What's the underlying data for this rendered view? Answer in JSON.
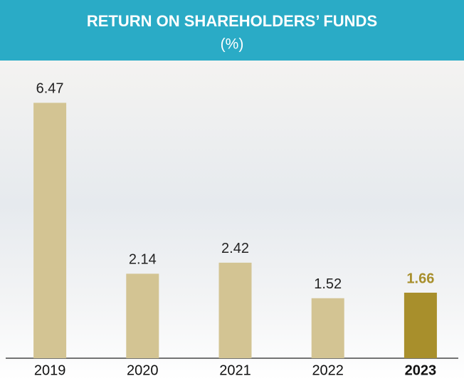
{
  "chart_data": {
    "type": "bar",
    "title": "RETURN ON SHAREHOLDERS’ FUNDS",
    "subtitle": "(%)",
    "categories": [
      "2019",
      "2020",
      "2021",
      "2022",
      "2023"
    ],
    "values": [
      6.47,
      2.14,
      2.42,
      1.52,
      1.66
    ],
    "value_labels": [
      "6.47",
      "2.14",
      "2.42",
      "1.52",
      "1.66"
    ],
    "colors": [
      "#d3c493",
      "#d3c493",
      "#d3c493",
      "#d3c493",
      "#a88f2c"
    ],
    "ylim": [
      0,
      7
    ]
  }
}
